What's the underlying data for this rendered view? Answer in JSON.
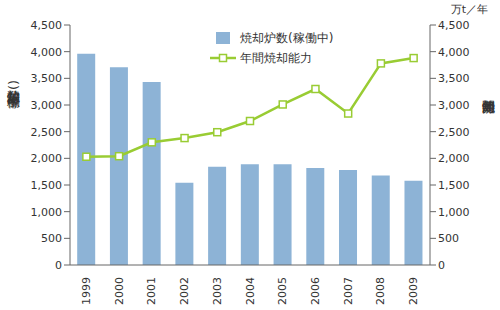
{
  "chart_data": {
    "type": "bar",
    "categories": [
      "1999",
      "2000",
      "2001",
      "2002",
      "2003",
      "2004",
      "2005",
      "2006",
      "2007",
      "2008",
      "2009"
    ],
    "series": [
      {
        "name": "焼却炉数(稼働中)",
        "type": "bar",
        "color": "#8db3d6",
        "values": [
          3960,
          3710,
          3430,
          1540,
          1840,
          1890,
          1890,
          1820,
          1780,
          1680,
          1580
        ]
      },
      {
        "name": "年間焼却能力",
        "type": "line",
        "color": "#99cc33",
        "marker": "square",
        "axis": "y2",
        "values": [
          2030,
          2040,
          2300,
          2380,
          2490,
          2700,
          3010,
          3300,
          2840,
          3780,
          3880
        ]
      }
    ],
    "y_label": "焼却炉数(稼働中)",
    "y2_label": "年間焼却能力",
    "y2_unit": "万t／年",
    "ylim": [
      0,
      4500
    ],
    "yticks": [
      0,
      500,
      {
        "value": 1000,
        "label": "1,000"
      },
      {
        "value": 1500,
        "label": "1,500"
      },
      {
        "value": 2000,
        "label": "2,000"
      },
      {
        "value": 2500,
        "label": "2,500"
      },
      {
        "value": 3000,
        "label": "3,000"
      },
      {
        "value": 3500,
        "label": "3,500"
      },
      {
        "value": 4000,
        "label": "4,000"
      },
      {
        "value": 4500,
        "label": "4,500"
      }
    ],
    "y2lim": [
      0,
      4500
    ],
    "y2ticks": [
      0,
      500,
      {
        "value": 1000,
        "label": "1,000"
      },
      {
        "value": 1500,
        "label": "1,500"
      },
      {
        "value": 2000,
        "label": "2,000"
      },
      {
        "value": 2500,
        "label": "2,500"
      },
      {
        "value": 3000,
        "label": "3,000"
      },
      {
        "value": 3500,
        "label": "3,500"
      },
      {
        "value": 4000,
        "label": "4,000"
      },
      {
        "value": 4500,
        "label": "4,500"
      }
    ],
    "legend": "top",
    "grid": false
  }
}
